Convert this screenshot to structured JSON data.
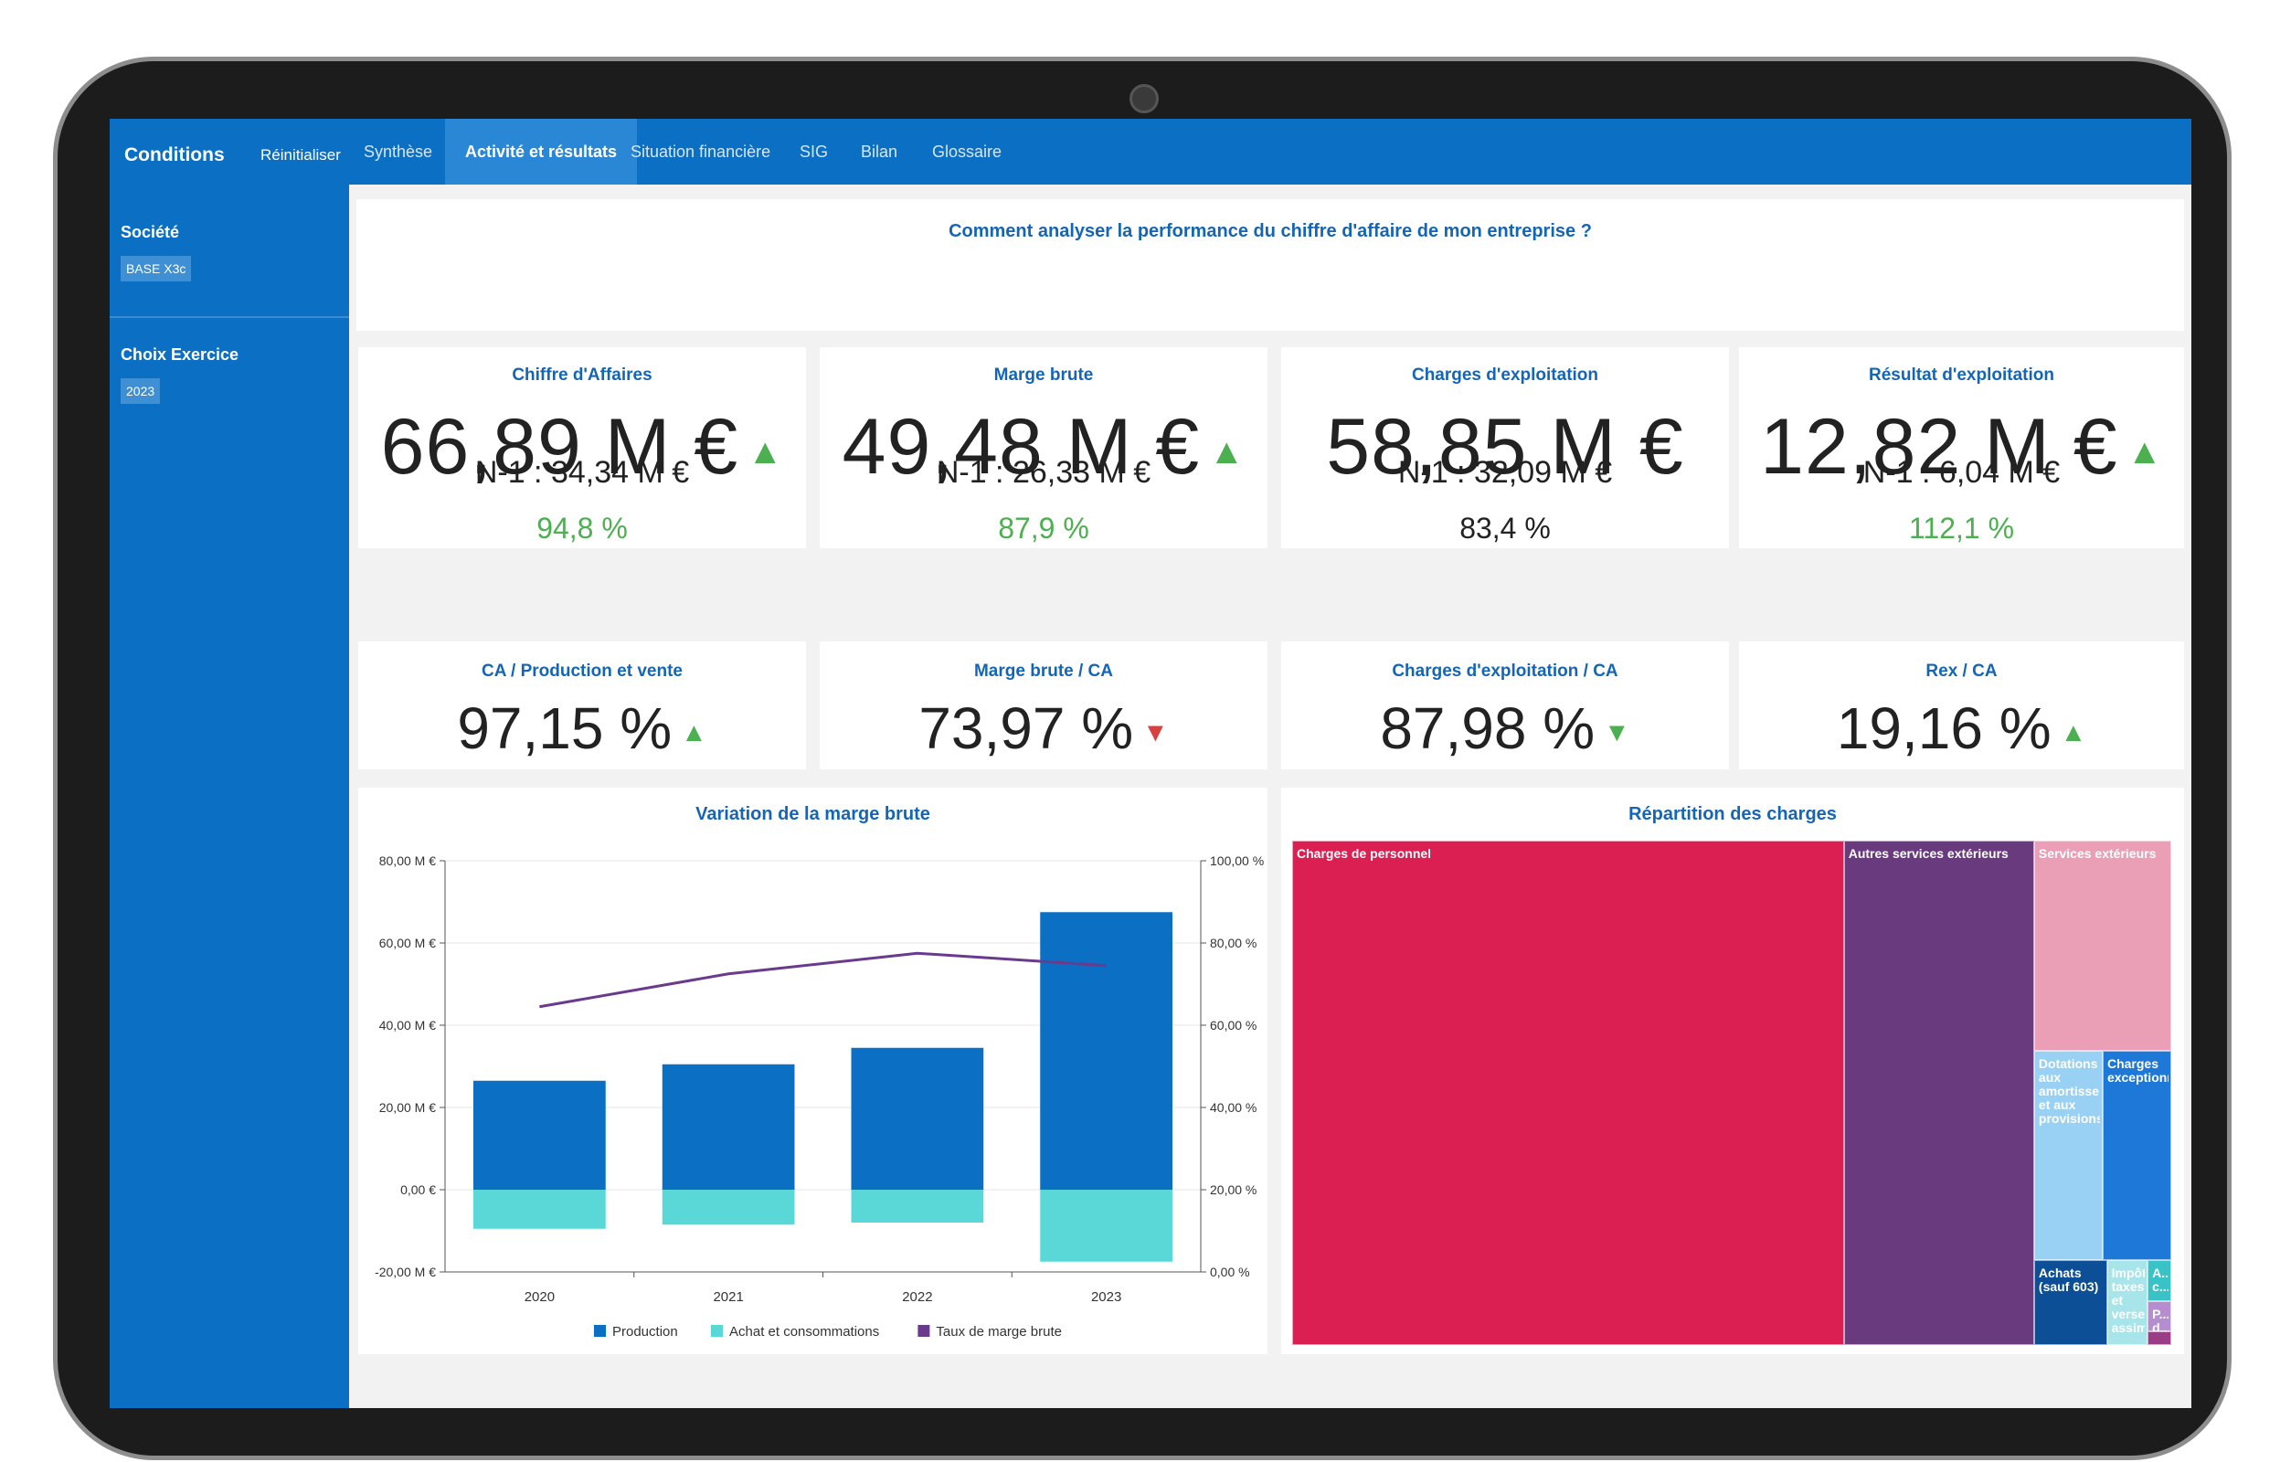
{
  "topbar": {
    "conditions": "Conditions",
    "reset": "Réinitialiser",
    "tabs": [
      "Synthèse",
      "Activité et résultats",
      "Situation financière",
      "SIG",
      "Bilan",
      "Glossaire"
    ]
  },
  "sidebar": {
    "company_label": "Société",
    "company_value": "BASE X3c",
    "exercise_label": "Choix Exercice",
    "exercise_value": "2023"
  },
  "question": "Comment analyser la performance du chiffre d'affaire de mon entreprise ?",
  "kpis": [
    {
      "title": "Chiffre d'Affaires",
      "value": "66,89 M €",
      "trend": "up",
      "previous": "N-1 : 34,34 M €",
      "change": "94,8 %",
      "change_color": "#4caf50"
    },
    {
      "title": "Marge brute",
      "value": "49,48 M €",
      "trend": "up",
      "previous": "N-1 : 26,33 M €",
      "change": "87,9 %",
      "change_color": "#4caf50"
    },
    {
      "title": "Charges d'exploitation",
      "value": "58,85 M €",
      "trend": "",
      "previous": "N-1 : 32,09 M €",
      "change": "83,4 %",
      "change_color": "#222222"
    },
    {
      "title": "Résultat d'exploitation",
      "value": "12,82 M €",
      "trend": "up",
      "previous": "N-1 : 6,04 M €",
      "change": "112,1 %",
      "change_color": "#4caf50"
    }
  ],
  "ratios": [
    {
      "title": "CA / Production et vente",
      "value": "97,15 %",
      "trend": "up"
    },
    {
      "title": "Marge brute / CA",
      "value": "73,97 %",
      "trend": "down-red"
    },
    {
      "title": "Charges d'exploitation / CA",
      "value": "87,98 %",
      "trend": "down-green"
    },
    {
      "title": "Rex / CA",
      "value": "19,16 %",
      "trend": "up"
    }
  ],
  "colors": {
    "brand": "#0b6fc4",
    "up": "#4caf50",
    "down_red": "#d94040",
    "production": "#0b6fc4",
    "achat": "#5ad8d8",
    "taux": "#6a3a8c"
  },
  "chart_data": [
    {
      "type": "bar",
      "title": "Variation de la marge brute",
      "categories": [
        "2020",
        "2021",
        "2022",
        "2023"
      ],
      "series": [
        {
          "name": "Production",
          "type": "bar",
          "values": [
            26.5,
            30.5,
            34.5,
            67.5
          ]
        },
        {
          "name": "Achat et consommations",
          "type": "bar",
          "values": [
            -9.5,
            -8.5,
            -8.0,
            -17.5
          ]
        },
        {
          "name": "Taux de marge brute",
          "type": "line",
          "axis": "right",
          "values": [
            64.5,
            72.5,
            77.5,
            74.5
          ]
        }
      ],
      "ylim": [
        -20,
        80
      ],
      "y_ticks": [
        "-20,00 M €",
        "0,00 €",
        "20,00 M €",
        "40,00 M €",
        "60,00 M €",
        "80,00 M €"
      ],
      "y2lim": [
        0,
        100
      ],
      "y2_ticks": [
        "0,00 %",
        "20,00 %",
        "40,00 %",
        "60,00 %",
        "80,00 %",
        "100,00 %"
      ],
      "legend": "bottom",
      "grid": true
    },
    {
      "type": "treemap",
      "title": "Répartition des charges",
      "items": [
        {
          "label": "Charges de personnel",
          "value": 348,
          "color": "#dc1f52"
        },
        {
          "label": "Autres services extérieurs",
          "value": 120,
          "color": "#6a3a7f"
        },
        {
          "label": "Services extérieurs",
          "value": 36,
          "color": "#ea9fb6"
        },
        {
          "label": "Dotations aux amortissements et aux provisions",
          "value": 18,
          "color": "#99d1f5"
        },
        {
          "label": "Charges exceptionnelles",
          "value": 18,
          "color": "#1e78d8"
        },
        {
          "label": "Achats (sauf 603)",
          "value": 7.7,
          "color": "#0d4f96"
        },
        {
          "label": "Impôts taxes et verseme... assimilés",
          "value": 4.3,
          "color": "#a7e5ea"
        },
        {
          "label": "A... c...",
          "value": 1.2,
          "color": "#3ac3c7"
        },
        {
          "label": "P... d...",
          "value": 0.9,
          "color": "#b68ed0"
        },
        {
          "label": "",
          "value": 0.4,
          "color": "#9b3d86"
        }
      ]
    }
  ]
}
